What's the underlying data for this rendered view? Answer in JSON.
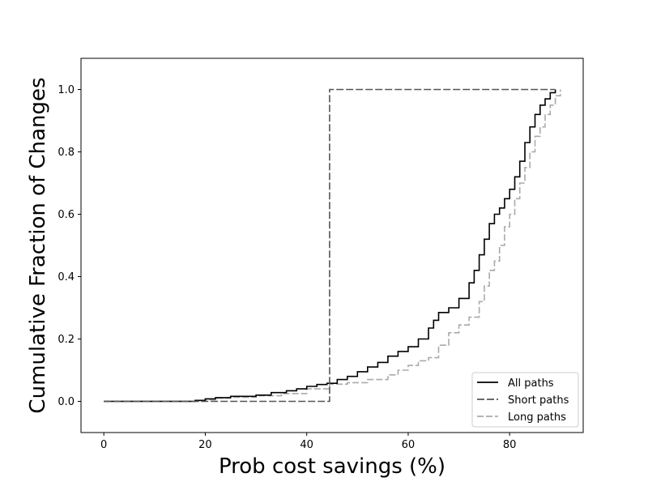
{
  "chart_data": {
    "type": "line",
    "title": "",
    "xlabel": "Prob cost savings (%)",
    "ylabel": "Cumulative Fraction of Changes",
    "xlim": [
      -4.5,
      94.5
    ],
    "ylim": [
      -0.1,
      1.1
    ],
    "xticks": [
      0,
      20,
      40,
      60,
      80
    ],
    "yticks": [
      0.0,
      0.2,
      0.4,
      0.6,
      0.8,
      1.0
    ],
    "xtick_labels": [
      "0",
      "20",
      "40",
      "60",
      "80"
    ],
    "ytick_labels": [
      "0.0",
      "0.2",
      "0.4",
      "0.6",
      "0.8",
      "1.0"
    ],
    "grid": false,
    "legend_position": "lower-right",
    "step": true,
    "series": [
      {
        "name": "All paths",
        "color": "#000000",
        "style": "solid",
        "x": [
          0,
          18,
          20,
          22,
          25,
          30,
          33,
          36,
          38,
          40,
          42,
          44,
          46,
          48,
          50,
          52,
          54,
          56,
          58,
          60,
          62,
          64,
          65,
          66,
          68,
          70,
          72,
          73,
          74,
          75,
          76,
          77,
          78,
          79,
          80,
          81,
          82,
          83,
          84,
          85,
          86,
          87,
          88,
          89
        ],
        "y": [
          0.0,
          0.003,
          0.008,
          0.012,
          0.016,
          0.02,
          0.028,
          0.034,
          0.04,
          0.048,
          0.054,
          0.058,
          0.07,
          0.08,
          0.095,
          0.11,
          0.125,
          0.145,
          0.16,
          0.175,
          0.2,
          0.235,
          0.26,
          0.285,
          0.3,
          0.33,
          0.38,
          0.42,
          0.47,
          0.52,
          0.57,
          0.6,
          0.62,
          0.65,
          0.68,
          0.72,
          0.77,
          0.83,
          0.88,
          0.92,
          0.95,
          0.97,
          0.99,
          1.0
        ]
      },
      {
        "name": "Short paths",
        "color": "#555555",
        "style": "dashed",
        "x": [
          0,
          44.5,
          89
        ],
        "y": [
          0.0,
          1.0,
          1.0
        ]
      },
      {
        "name": "Long paths",
        "color": "#aaaaaa",
        "style": "dashed",
        "x": [
          0,
          20,
          22,
          25,
          30,
          35,
          40,
          44.5,
          48,
          52,
          56,
          58,
          60,
          62,
          64,
          66,
          68,
          70,
          72,
          74,
          75,
          76,
          77,
          78,
          79,
          80,
          81,
          82,
          83,
          84,
          85,
          86,
          87,
          88,
          89,
          90
        ],
        "y": [
          0.0,
          0.005,
          0.01,
          0.013,
          0.018,
          0.025,
          0.04,
          0.055,
          0.06,
          0.07,
          0.085,
          0.1,
          0.115,
          0.13,
          0.14,
          0.18,
          0.22,
          0.245,
          0.27,
          0.32,
          0.37,
          0.42,
          0.45,
          0.5,
          0.56,
          0.6,
          0.65,
          0.7,
          0.75,
          0.8,
          0.85,
          0.88,
          0.92,
          0.95,
          0.98,
          1.0
        ]
      }
    ]
  }
}
